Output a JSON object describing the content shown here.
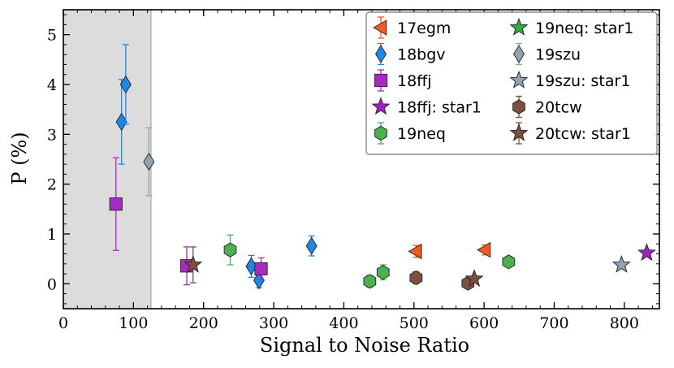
{
  "chart_data": {
    "type": "scatter",
    "title": "",
    "xlabel": "Signal to Noise Ratio",
    "ylabel": "P (%)",
    "xlim": [
      0,
      850
    ],
    "ylim": [
      -0.5,
      5.5
    ],
    "xticks": [
      0,
      100,
      200,
      300,
      400,
      500,
      600,
      700,
      800
    ],
    "yticks": [
      0,
      1,
      2,
      3,
      4,
      5
    ],
    "shaded_region": {
      "x": [
        0,
        125
      ],
      "color": "#dcdcdc"
    },
    "legend_position": "top-right",
    "series": [
      {
        "name": "17egm",
        "marker": "triangle-left",
        "color": "#f05a23",
        "points": [
          {
            "x": 503,
            "y": 0.65,
            "err": 0.12
          },
          {
            "x": 601,
            "y": 0.68,
            "err": 0.1
          }
        ]
      },
      {
        "name": "18bgv",
        "marker": "diamond",
        "color": "#1e88e5",
        "points": [
          {
            "x": 83,
            "y": 3.25,
            "err": 0.85
          },
          {
            "x": 89,
            "y": 4.0,
            "err": 0.8
          },
          {
            "x": 268,
            "y": 0.35,
            "err": 0.22
          },
          {
            "x": 279,
            "y": 0.07,
            "err": 0.15
          },
          {
            "x": 354,
            "y": 0.76,
            "err": 0.2
          }
        ]
      },
      {
        "name": "18ffj",
        "marker": "square",
        "color": "#a72bbf",
        "points": [
          {
            "x": 75,
            "y": 1.6,
            "err": 0.93
          },
          {
            "x": 176,
            "y": 0.36,
            "err": 0.38
          },
          {
            "x": 282,
            "y": 0.3,
            "err": 0.22
          }
        ]
      },
      {
        "name": "18ffj: star1",
        "marker": "star",
        "color": "#a020c0",
        "points": [
          {
            "x": 832,
            "y": 0.62,
            "err": 0
          }
        ]
      },
      {
        "name": "19neq",
        "marker": "hexagon",
        "color": "#4caf50",
        "points": [
          {
            "x": 238,
            "y": 0.68,
            "err": 0.3
          },
          {
            "x": 437,
            "y": 0.05,
            "err": 0.12
          },
          {
            "x": 456,
            "y": 0.23,
            "err": 0.15
          },
          {
            "x": 635,
            "y": 0.44,
            "err": 0
          }
        ]
      },
      {
        "name": "19neq: star1",
        "marker": "star",
        "color": "#33aa44",
        "points": []
      },
      {
        "name": "19szu",
        "marker": "diamond",
        "color": "#90a4ae",
        "points": [
          {
            "x": 122,
            "y": 2.45,
            "err": 0.68
          }
        ]
      },
      {
        "name": "19szu: star1",
        "marker": "star",
        "color": "#8fa5b3",
        "points": [
          {
            "x": 796,
            "y": 0.38,
            "err": 0
          }
        ]
      },
      {
        "name": "20tcw",
        "marker": "hexagon",
        "color": "#7b5040",
        "points": [
          {
            "x": 503,
            "y": 0.12,
            "err": 0.12
          },
          {
            "x": 577,
            "y": 0.01,
            "err": 0.1
          }
        ]
      },
      {
        "name": "20tcw: star1",
        "marker": "star",
        "color": "#7b5040",
        "points": [
          {
            "x": 185,
            "y": 0.38,
            "err": 0.36
          },
          {
            "x": 586,
            "y": 0.1,
            "err": 0
          }
        ]
      }
    ],
    "legend_order": [
      [
        "17egm",
        "19neq: star1"
      ],
      [
        "18bgv",
        "19szu"
      ],
      [
        "18ffj",
        "19szu: star1"
      ],
      [
        "18ffj: star1",
        "20tcw"
      ],
      [
        "19neq",
        "20tcw: star1"
      ]
    ]
  }
}
